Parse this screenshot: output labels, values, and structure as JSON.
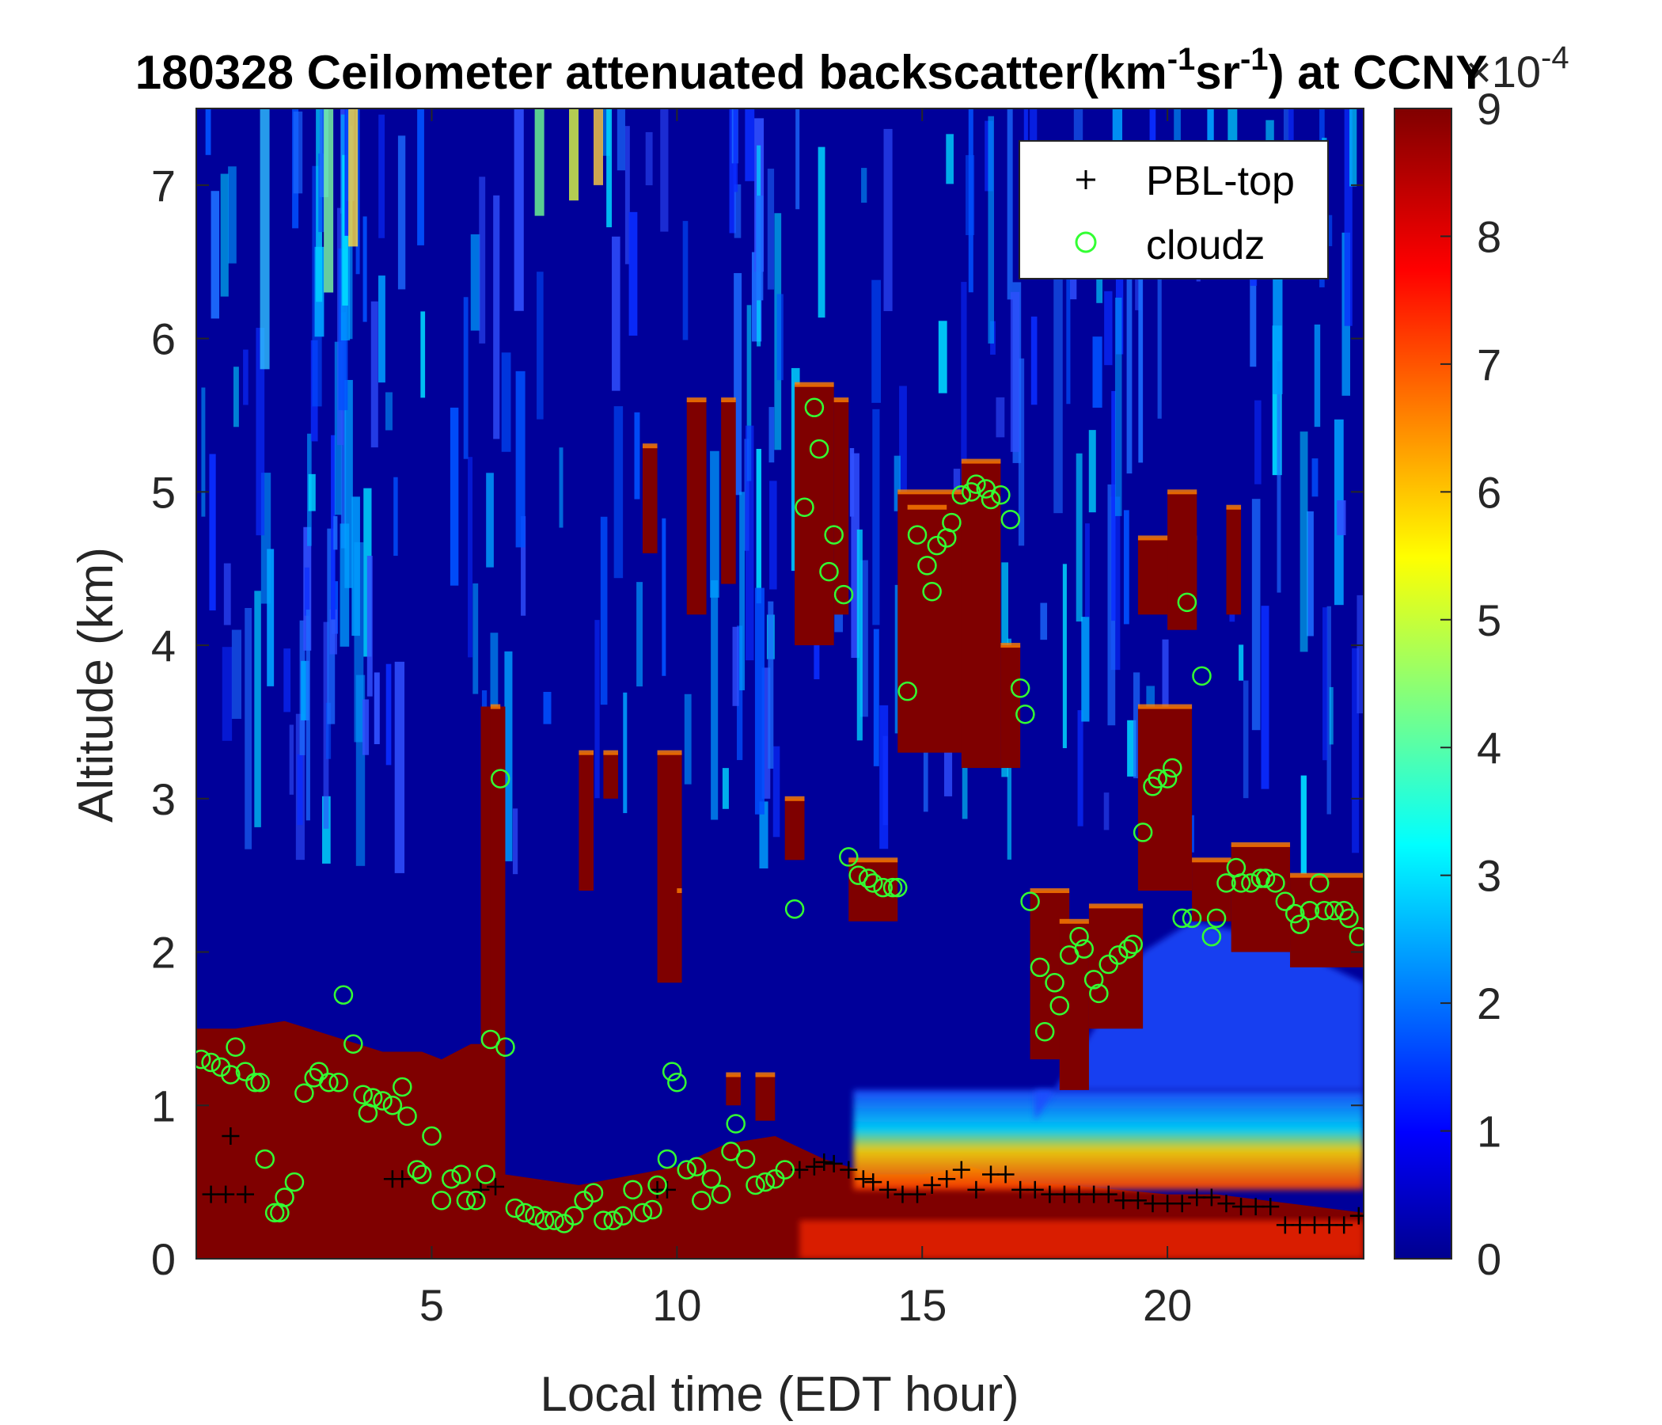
{
  "chart_data": {
    "type": "heatmap",
    "title": {
      "main": "180328 Ceilometer attenuated backscatter(km",
      "sup1": "-1",
      "mid": "sr",
      "sup2": "-1",
      "end": ") at CCNY"
    },
    "xlabel": "Local time (EDT hour)",
    "ylabel": "Altitude (km)",
    "xlim": [
      0.2,
      24
    ],
    "ylim": [
      0,
      7.5
    ],
    "xticks": [
      "5",
      "10",
      "15",
      "20"
    ],
    "yticks": [
      "0",
      "1",
      "2",
      "3",
      "4",
      "5",
      "6",
      "7"
    ],
    "colorbar": {
      "colormap": "jet",
      "clim": [
        0,
        9
      ],
      "ticks": [
        "0",
        "1",
        "2",
        "3",
        "4",
        "5",
        "6",
        "7",
        "8",
        "9"
      ],
      "exponent_label": "×10",
      "exponent_sup": "-4"
    },
    "legend": {
      "placement": "top-right",
      "entries": [
        {
          "label": "PBL-top",
          "marker": "+",
          "color": "#000000"
        },
        {
          "label": "cloudz",
          "marker": "o",
          "color": "#33ff33"
        }
      ]
    },
    "series": [
      {
        "name": "PBL-top",
        "points": [
          [
            0.5,
            0.42
          ],
          [
            0.8,
            0.42
          ],
          [
            0.9,
            0.8
          ],
          [
            1.2,
            0.42
          ],
          [
            4.2,
            0.52
          ],
          [
            4.4,
            0.52
          ],
          [
            6.0,
            0.45
          ],
          [
            6.3,
            0.47
          ],
          [
            9.6,
            0.45
          ],
          [
            9.8,
            0.45
          ],
          [
            12.5,
            0.58
          ],
          [
            12.8,
            0.6
          ],
          [
            13.0,
            0.63
          ],
          [
            13.2,
            0.62
          ],
          [
            13.5,
            0.58
          ],
          [
            13.8,
            0.52
          ],
          [
            14.0,
            0.5
          ],
          [
            14.3,
            0.45
          ],
          [
            14.6,
            0.42
          ],
          [
            14.9,
            0.42
          ],
          [
            15.2,
            0.48
          ],
          [
            15.5,
            0.52
          ],
          [
            15.8,
            0.58
          ],
          [
            16.1,
            0.45
          ],
          [
            16.4,
            0.55
          ],
          [
            16.7,
            0.55
          ],
          [
            17.0,
            0.45
          ],
          [
            17.3,
            0.45
          ],
          [
            17.6,
            0.42
          ],
          [
            17.9,
            0.42
          ],
          [
            18.2,
            0.42
          ],
          [
            18.5,
            0.42
          ],
          [
            18.8,
            0.42
          ],
          [
            19.1,
            0.38
          ],
          [
            19.4,
            0.38
          ],
          [
            19.7,
            0.36
          ],
          [
            20.0,
            0.36
          ],
          [
            20.3,
            0.36
          ],
          [
            20.6,
            0.4
          ],
          [
            20.9,
            0.4
          ],
          [
            21.2,
            0.36
          ],
          [
            21.5,
            0.34
          ],
          [
            21.8,
            0.34
          ],
          [
            22.1,
            0.34
          ],
          [
            22.4,
            0.22
          ],
          [
            22.7,
            0.22
          ],
          [
            23.0,
            0.22
          ],
          [
            23.3,
            0.22
          ],
          [
            23.6,
            0.22
          ],
          [
            23.9,
            0.28
          ]
        ]
      },
      {
        "name": "cloudz",
        "points": [
          [
            0.3,
            1.3
          ],
          [
            0.5,
            1.28
          ],
          [
            0.7,
            1.25
          ],
          [
            0.9,
            1.2
          ],
          [
            1.0,
            1.38
          ],
          [
            1.2,
            1.22
          ],
          [
            1.4,
            1.15
          ],
          [
            1.5,
            1.15
          ],
          [
            1.6,
            0.65
          ],
          [
            1.8,
            0.3
          ],
          [
            1.9,
            0.3
          ],
          [
            2.0,
            0.4
          ],
          [
            2.2,
            0.5
          ],
          [
            2.4,
            1.08
          ],
          [
            2.6,
            1.18
          ],
          [
            2.7,
            1.22
          ],
          [
            2.9,
            1.15
          ],
          [
            3.1,
            1.15
          ],
          [
            3.2,
            1.72
          ],
          [
            3.4,
            1.4
          ],
          [
            3.6,
            1.07
          ],
          [
            3.7,
            0.95
          ],
          [
            3.8,
            1.05
          ],
          [
            4.0,
            1.03
          ],
          [
            4.2,
            1.0
          ],
          [
            4.4,
            1.12
          ],
          [
            4.5,
            0.93
          ],
          [
            4.7,
            0.58
          ],
          [
            4.8,
            0.55
          ],
          [
            5.0,
            0.8
          ],
          [
            5.2,
            0.38
          ],
          [
            5.4,
            0.52
          ],
          [
            5.6,
            0.55
          ],
          [
            5.7,
            0.38
          ],
          [
            5.9,
            0.38
          ],
          [
            6.1,
            0.55
          ],
          [
            6.2,
            1.43
          ],
          [
            6.4,
            3.13
          ],
          [
            6.5,
            1.38
          ],
          [
            6.7,
            0.33
          ],
          [
            6.9,
            0.3
          ],
          [
            7.1,
            0.28
          ],
          [
            7.3,
            0.25
          ],
          [
            7.5,
            0.25
          ],
          [
            7.7,
            0.23
          ],
          [
            7.9,
            0.28
          ],
          [
            8.1,
            0.38
          ],
          [
            8.3,
            0.43
          ],
          [
            8.5,
            0.25
          ],
          [
            8.7,
            0.25
          ],
          [
            8.9,
            0.28
          ],
          [
            9.1,
            0.45
          ],
          [
            9.3,
            0.3
          ],
          [
            9.5,
            0.32
          ],
          [
            9.6,
            0.48
          ],
          [
            9.8,
            0.65
          ],
          [
            9.9,
            1.22
          ],
          [
            10.0,
            1.15
          ],
          [
            10.2,
            0.58
          ],
          [
            10.4,
            0.6
          ],
          [
            10.5,
            0.38
          ],
          [
            10.7,
            0.52
          ],
          [
            10.9,
            0.42
          ],
          [
            11.1,
            0.7
          ],
          [
            11.2,
            0.88
          ],
          [
            11.4,
            0.65
          ],
          [
            11.6,
            0.48
          ],
          [
            11.8,
            0.5
          ],
          [
            12.0,
            0.52
          ],
          [
            12.2,
            0.58
          ],
          [
            12.4,
            2.28
          ],
          [
            12.6,
            4.9
          ],
          [
            12.8,
            5.55
          ],
          [
            12.9,
            5.28
          ],
          [
            13.1,
            4.48
          ],
          [
            13.2,
            4.72
          ],
          [
            13.4,
            4.33
          ],
          [
            13.5,
            2.62
          ],
          [
            13.7,
            2.5
          ],
          [
            13.9,
            2.48
          ],
          [
            14.0,
            2.45
          ],
          [
            14.2,
            2.42
          ],
          [
            14.4,
            2.42
          ],
          [
            14.5,
            2.42
          ],
          [
            14.7,
            3.7
          ],
          [
            14.9,
            4.72
          ],
          [
            15.1,
            4.52
          ],
          [
            15.2,
            4.35
          ],
          [
            15.3,
            4.65
          ],
          [
            15.5,
            4.7
          ],
          [
            15.6,
            4.8
          ],
          [
            15.8,
            4.98
          ],
          [
            16.0,
            5.0
          ],
          [
            16.1,
            5.05
          ],
          [
            16.3,
            5.02
          ],
          [
            16.4,
            4.95
          ],
          [
            16.6,
            4.98
          ],
          [
            16.8,
            4.82
          ],
          [
            17.0,
            3.72
          ],
          [
            17.1,
            3.55
          ],
          [
            17.2,
            2.33
          ],
          [
            17.4,
            1.9
          ],
          [
            17.5,
            1.48
          ],
          [
            17.7,
            1.8
          ],
          [
            17.8,
            1.65
          ],
          [
            18.0,
            1.98
          ],
          [
            18.2,
            2.1
          ],
          [
            18.3,
            2.02
          ],
          [
            18.5,
            1.82
          ],
          [
            18.6,
            1.73
          ],
          [
            18.8,
            1.92
          ],
          [
            19.0,
            1.98
          ],
          [
            19.2,
            2.02
          ],
          [
            19.3,
            2.05
          ],
          [
            19.5,
            2.78
          ],
          [
            19.7,
            3.08
          ],
          [
            19.8,
            3.13
          ],
          [
            20.0,
            3.13
          ],
          [
            20.1,
            3.2
          ],
          [
            20.3,
            2.22
          ],
          [
            20.4,
            4.28
          ],
          [
            20.5,
            2.22
          ],
          [
            20.7,
            3.8
          ],
          [
            20.9,
            2.1
          ],
          [
            21.0,
            2.22
          ],
          [
            21.2,
            2.45
          ],
          [
            21.4,
            2.55
          ],
          [
            21.5,
            2.45
          ],
          [
            21.7,
            2.45
          ],
          [
            21.9,
            2.48
          ],
          [
            22.0,
            2.48
          ],
          [
            22.2,
            2.45
          ],
          [
            22.4,
            2.33
          ],
          [
            22.6,
            2.25
          ],
          [
            22.7,
            2.18
          ],
          [
            22.9,
            2.27
          ],
          [
            23.1,
            2.45
          ],
          [
            23.2,
            2.27
          ],
          [
            23.4,
            2.27
          ],
          [
            23.6,
            2.27
          ],
          [
            23.7,
            2.22
          ],
          [
            23.9,
            2.1
          ]
        ]
      }
    ]
  }
}
